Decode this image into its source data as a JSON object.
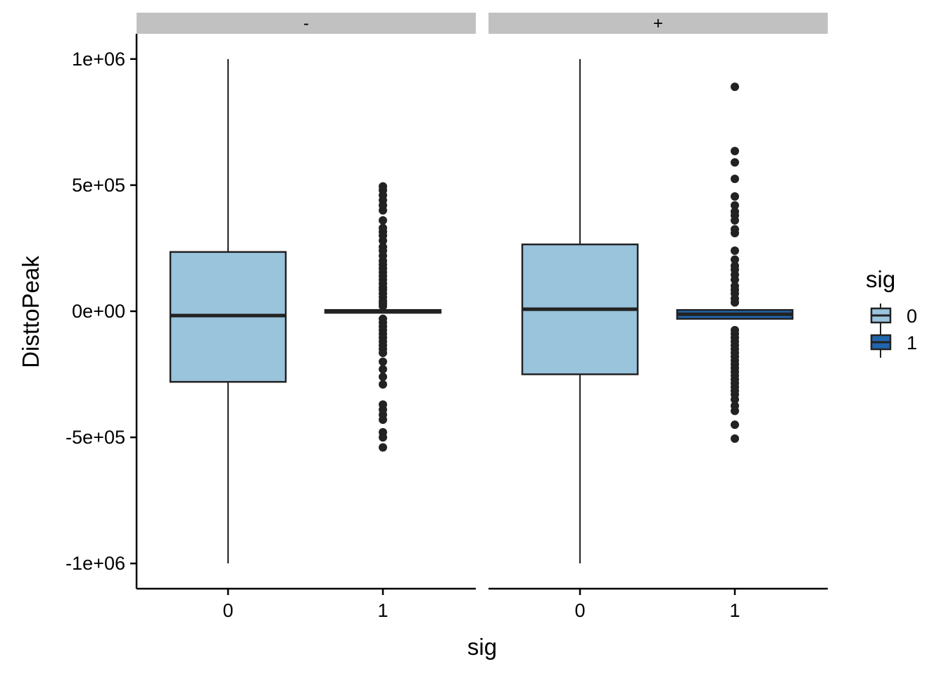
{
  "chart_data": {
    "type": "boxplot",
    "xlabel": "sig",
    "ylabel": "DisttoPeak",
    "ylim": [
      -1100000,
      1100000
    ],
    "y_ticks": [
      {
        "value": 1000000,
        "label": "1e+06"
      },
      {
        "value": 500000,
        "label": "5e+05"
      },
      {
        "value": 0,
        "label": "0e+00"
      },
      {
        "value": -500000,
        "label": "-5e+05"
      },
      {
        "value": -1000000,
        "label": "-1e+06"
      }
    ],
    "categories": [
      "0",
      "1"
    ],
    "legend": {
      "title": "sig",
      "position": "right",
      "entries": [
        {
          "label": "0",
          "color": "#9ac3dc"
        },
        {
          "label": "1",
          "color": "#2166ac"
        }
      ]
    },
    "colors": {
      "sig0": "#9ac3dc",
      "sig1": "#2166ac",
      "line": "#222222",
      "strip": "#c1c1c1"
    },
    "panels": [
      {
        "label": "-",
        "boxes": [
          {
            "category": "0",
            "min": -1000000,
            "q1": -280000,
            "median": -17000,
            "q3": 235000,
            "max": 1000000,
            "outliers": []
          },
          {
            "category": "1",
            "min": -5000,
            "q1": -5000,
            "median": 0,
            "q3": 5000,
            "max": 5000,
            "outliers": [
              495000,
              480000,
              460000,
              440000,
              420000,
              400000,
              360000,
              330000,
              315000,
              300000,
              280000,
              255000,
              240000,
              220000,
              200000,
              185000,
              170000,
              155000,
              140000,
              125000,
              110000,
              95000,
              85000,
              70000,
              55000,
              40000,
              30000,
              20000,
              -30000,
              -45000,
              -60000,
              -75000,
              -90000,
              -105000,
              -120000,
              -135000,
              -150000,
              -165000,
              -200000,
              -230000,
              -260000,
              -290000,
              -370000,
              -390000,
              -410000,
              -430000,
              -480000,
              -500000,
              -540000
            ]
          }
        ]
      },
      {
        "label": "+",
        "boxes": [
          {
            "category": "0",
            "min": -1000000,
            "q1": -250000,
            "median": 8000,
            "q3": 265000,
            "max": 1000000,
            "outliers": []
          },
          {
            "category": "1",
            "min": -30000,
            "q1": -30000,
            "median": -12000,
            "q3": 5000,
            "max": 5000,
            "outliers": [
              890000,
              635000,
              590000,
              525000,
              455000,
              420000,
              395000,
              380000,
              360000,
              325000,
              310000,
              240000,
              205000,
              180000,
              165000,
              145000,
              125000,
              100000,
              85000,
              70000,
              50000,
              35000,
              -75000,
              -90000,
              -105000,
              -120000,
              -135000,
              -150000,
              -165000,
              -180000,
              -195000,
              -210000,
              -225000,
              -240000,
              -255000,
              -270000,
              -285000,
              -300000,
              -315000,
              -330000,
              -350000,
              -375000,
              -395000,
              -450000,
              -505000
            ]
          }
        ]
      }
    ]
  }
}
